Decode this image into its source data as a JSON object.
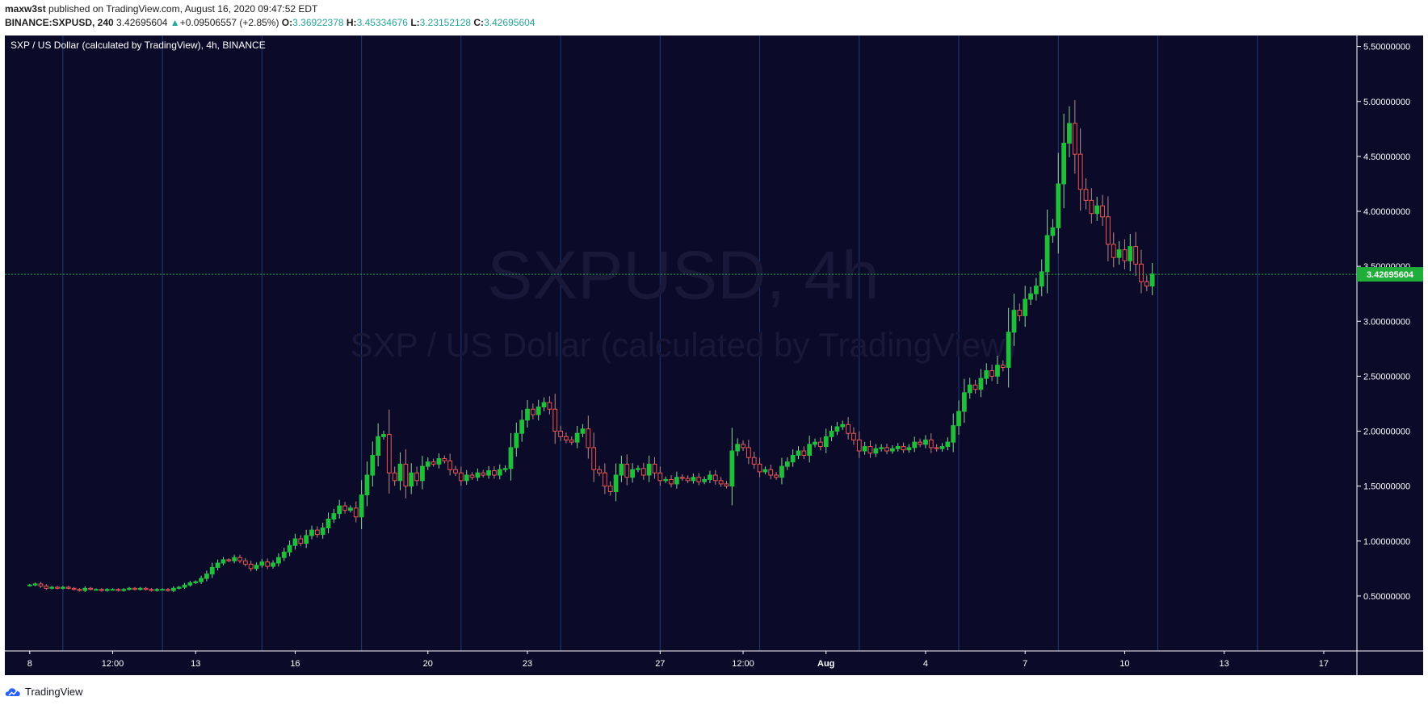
{
  "header": {
    "author": "maxw3st",
    "published_text": "published on TradingView.com, August 16, 2020 09:47:52 EDT",
    "symbol": "BINANCE:SXPUSD, 240",
    "last": "3.42695604",
    "change_arrow": "▲",
    "change": "+0.09506557 (+2.85%)",
    "open_label": "O:",
    "open": "3.36922378",
    "high_label": "H:",
    "high": "3.45334676",
    "low_label": "L:",
    "low": "3.23152128",
    "close_label": "C:",
    "close": "3.42695604"
  },
  "chart_title": "SXP / US Dollar (calculated by TradingView), 4h, BINANCE",
  "watermark": {
    "line1": "SXPUSD, 4h",
    "line2": "SXP / US Dollar (calculated by TradingView)"
  },
  "footer": {
    "brand": "TradingView",
    "logo_icon": "tradingview-cloud-icon"
  },
  "colors": {
    "background": "#0c0a29",
    "up": "#26a69a",
    "up_body": "#1fbf3a",
    "down": "#ef5350",
    "vline": "#1f3a7a",
    "text": "#ffffff",
    "last_price": "#1fae3a"
  },
  "chart_data": {
    "type": "candlestick",
    "title": "SXP / US Dollar (calculated by TradingView), 4h, BINANCE",
    "interval": "4h",
    "y_axis": {
      "ticks": [
        0.5,
        1.0,
        1.5,
        2.0,
        2.5,
        3.0,
        3.5,
        4.0,
        4.5,
        5.0,
        5.5
      ],
      "tick_labels": [
        "0.50000000",
        "1.00000000",
        "1.50000000",
        "2.00000000",
        "2.50000000",
        "3.00000000",
        "3.50000000",
        "4.00000000",
        "4.50000000",
        "5.00000000",
        "5.50000000"
      ],
      "range": [
        0.0,
        5.6
      ],
      "side": "right"
    },
    "x_axis": {
      "range_days": [
        7.25,
        48.0
      ],
      "ticks": [
        {
          "day": 8,
          "label": "8"
        },
        {
          "day": 10.5,
          "label": "12:00"
        },
        {
          "day": 13,
          "label": "13"
        },
        {
          "day": 16,
          "label": "16"
        },
        {
          "day": 20,
          "label": "20"
        },
        {
          "day": 23,
          "label": "23"
        },
        {
          "day": 27,
          "label": "27"
        },
        {
          "day": 29.5,
          "label": "12:00"
        },
        {
          "day": 32,
          "label": "Aug"
        },
        {
          "day": 35,
          "label": "4"
        },
        {
          "day": 38,
          "label": "7"
        },
        {
          "day": 41,
          "label": "10"
        },
        {
          "day": 44,
          "label": "13"
        },
        {
          "day": 47,
          "label": "17"
        }
      ]
    },
    "last_price": 3.42695604,
    "last_price_label": "3.42695604",
    "candles_per_day": 6,
    "start_day": 8.0,
    "closes": [
      0.6,
      0.61,
      0.59,
      0.57,
      0.58,
      0.57,
      0.58,
      0.57,
      0.56,
      0.55,
      0.57,
      0.56,
      0.56,
      0.55,
      0.56,
      0.56,
      0.55,
      0.56,
      0.57,
      0.56,
      0.57,
      0.56,
      0.55,
      0.56,
      0.56,
      0.55,
      0.57,
      0.58,
      0.6,
      0.62,
      0.63,
      0.66,
      0.7,
      0.76,
      0.8,
      0.83,
      0.82,
      0.85,
      0.82,
      0.79,
      0.75,
      0.78,
      0.81,
      0.77,
      0.8,
      0.85,
      0.9,
      0.96,
      1.02,
      0.98,
      1.05,
      1.1,
      1.06,
      1.12,
      1.2,
      1.25,
      1.32,
      1.28,
      1.3,
      1.22,
      1.42,
      1.6,
      1.78,
      1.95,
      1.97,
      1.62,
      1.55,
      1.7,
      1.5,
      1.62,
      1.55,
      1.68,
      1.72,
      1.7,
      1.75,
      1.73,
      1.65,
      1.62,
      1.55,
      1.6,
      1.58,
      1.62,
      1.6,
      1.64,
      1.6,
      1.65,
      1.66,
      1.85,
      1.98,
      2.1,
      2.2,
      2.15,
      2.22,
      2.26,
      2.2,
      2.0,
      1.95,
      1.92,
      1.9,
      1.98,
      2.02,
      1.85,
      1.65,
      1.62,
      1.5,
      1.45,
      1.6,
      1.7,
      1.58,
      1.65,
      1.66,
      1.6,
      1.7,
      1.62,
      1.55,
      1.56,
      1.52,
      1.58,
      1.57,
      1.55,
      1.58,
      1.54,
      1.56,
      1.6,
      1.55,
      1.52,
      1.5,
      1.82,
      1.88,
      1.85,
      1.76,
      1.7,
      1.63,
      1.65,
      1.6,
      1.58,
      1.68,
      1.72,
      1.78,
      1.82,
      1.78,
      1.88,
      1.9,
      1.86,
      1.95,
      2.0,
      2.04,
      2.06,
      1.98,
      1.92,
      1.82,
      1.86,
      1.8,
      1.84,
      1.85,
      1.82,
      1.84,
      1.86,
      1.83,
      1.85,
      1.9,
      1.88,
      1.92,
      1.85,
      1.84,
      1.86,
      1.9,
      2.05,
      2.18,
      2.35,
      2.42,
      2.38,
      2.48,
      2.55,
      2.5,
      2.6,
      2.58,
      2.9,
      3.1,
      3.05,
      3.2,
      3.25,
      3.32,
      3.45,
      3.78,
      3.85,
      4.25,
      4.62,
      4.8,
      4.52,
      4.2,
      4.1,
      3.98,
      4.05,
      3.95,
      3.7,
      3.58,
      3.65,
      3.55,
      3.68,
      3.52,
      3.36,
      3.32,
      3.43
    ]
  }
}
